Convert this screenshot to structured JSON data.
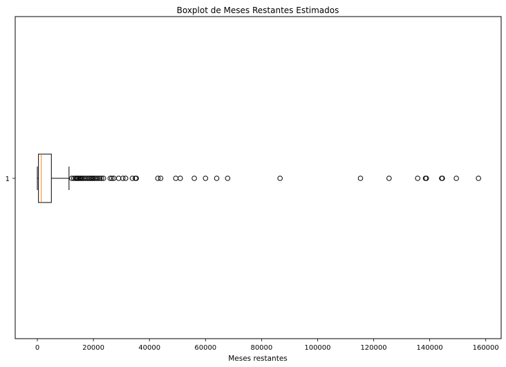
{
  "chart_data": {
    "type": "boxplot",
    "orientation": "horizontal",
    "title": "Boxplot de Meses Restantes Estimados",
    "xlabel": "Meses restantes",
    "ylabel": "",
    "xlim": [
      -7900,
      165500
    ],
    "y_categories": [
      "1"
    ],
    "x_ticks": [
      0,
      20000,
      40000,
      60000,
      80000,
      100000,
      120000,
      140000,
      160000
    ],
    "x_tick_labels": [
      "0",
      "20000",
      "40000",
      "60000",
      "80000",
      "100000",
      "120000",
      "140000",
      "160000"
    ],
    "grid": false,
    "box": {
      "whisker_low": 0,
      "q1": 400,
      "median": 1400,
      "q3": 5000,
      "whisker_high": 11300
    },
    "outliers": [
      12300,
      13000,
      13600,
      14000,
      14300,
      14600,
      15000,
      15400,
      15800,
      16200,
      16700,
      17200,
      17800,
      18400,
      18900,
      19300,
      19700,
      20100,
      20600,
      21100,
      21700,
      22300,
      22900,
      23600,
      26000,
      26600,
      27300,
      29000,
      30500,
      31500,
      33900,
      35000,
      35300,
      43000,
      44000,
      49400,
      51000,
      56000,
      60000,
      64000,
      67900,
      86600,
      115300,
      125500,
      135700,
      138500,
      138800,
      144300,
      144500,
      149500,
      157400
    ],
    "colors": {
      "median": "#ff7f0e",
      "box": "#000000",
      "outlier_edge": "#000000"
    }
  }
}
